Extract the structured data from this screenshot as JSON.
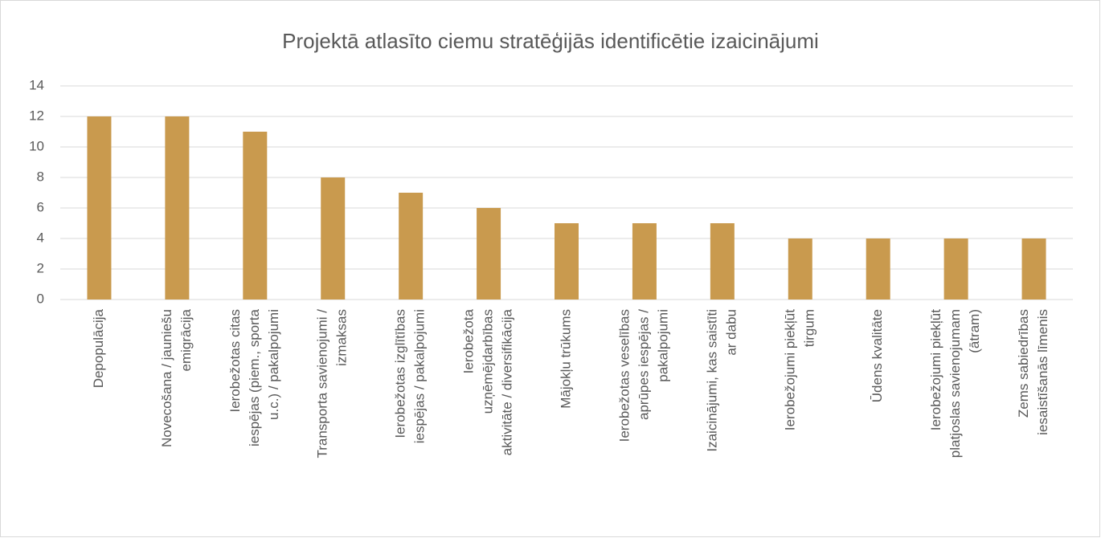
{
  "chart_data": {
    "type": "bar",
    "title": "Projektā atlasīto ciemu stratēģijās identificētie izaicinājumi",
    "categories": [
      [
        "Depopulācija"
      ],
      [
        "Novecošana / jauniešu",
        "emigrācija"
      ],
      [
        "Ierobežotas citas",
        "iespējas (piem., sporta",
        "u.c.) / pakalpojumi"
      ],
      [
        "Transporta savienojumi /",
        "izmaksas"
      ],
      [
        "Ierobežotas izglītības",
        "iespējas / pakalpojumi"
      ],
      [
        "Ierobežota",
        "uzņēmējdarbības",
        "aktivitāte / diversifikācija"
      ],
      [
        "Mājokļu trūkums"
      ],
      [
        "Ierobežotas veselības",
        "aprūpes iespējas /",
        "pakalpojumi"
      ],
      [
        "Izaicinājumi, kas saistīti",
        "ar dabu"
      ],
      [
        "Ierobežojumi piekļūt",
        "tirgum"
      ],
      [
        "Ūdens kvalitāte"
      ],
      [
        "Ierobežojumi piekļūt",
        "platjoslas savienojumam",
        "(ātram)"
      ],
      [
        "Zems sabiedrības",
        "iesaistīšanās līmenis"
      ]
    ],
    "values": [
      12,
      12,
      11,
      8,
      7,
      6,
      5,
      5,
      5,
      4,
      4,
      4,
      4
    ],
    "color": "#c99a4e",
    "ylim": [
      0,
      14
    ],
    "yticks": [
      0,
      2,
      4,
      6,
      8,
      10,
      12,
      14
    ],
    "grid": true
  }
}
